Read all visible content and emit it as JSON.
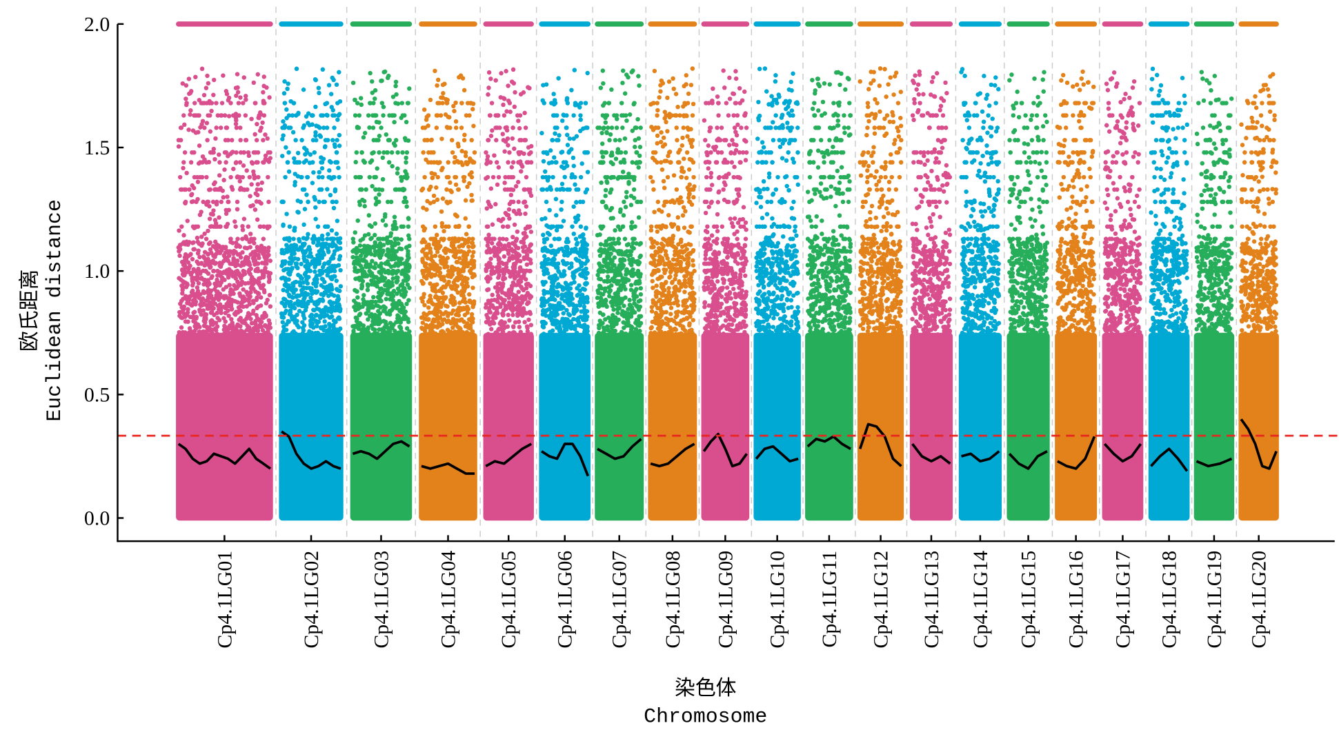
{
  "chart_data": {
    "type": "scatter",
    "title": "",
    "ylabel_cn": "欧氏距离",
    "ylabel": "Euclidean distance",
    "xlabel_cn": "染色体",
    "xlabel": "Chromosome",
    "ylim": [
      -0.1,
      2.0
    ],
    "yticks": [
      "0.0",
      "0.5",
      "1.0",
      "1.5",
      "2.0"
    ],
    "ytick_values": [
      0,
      0.5,
      1.0,
      1.5,
      2.0
    ],
    "threshold": 0.333,
    "threshold_color": "#e8251f",
    "colors": [
      "#d94f8e",
      "#00a9d4",
      "#27ae5a",
      "#e3821a"
    ],
    "chromosomes": [
      {
        "name": "Cp4.1LG01",
        "smooth": [
          0.3,
          0.28,
          0.24,
          0.22,
          0.23,
          0.26,
          0.25,
          0.24,
          0.22,
          0.25,
          0.28,
          0.24,
          0.22,
          0.2
        ]
      },
      {
        "name": "Cp4.1LG02",
        "smooth": [
          0.35,
          0.33,
          0.26,
          0.22,
          0.2,
          0.21,
          0.23,
          0.21,
          0.2
        ]
      },
      {
        "name": "Cp4.1LG03",
        "smooth": [
          0.26,
          0.27,
          0.26,
          0.24,
          0.27,
          0.3,
          0.31,
          0.29
        ]
      },
      {
        "name": "Cp4.1LG04",
        "smooth": [
          0.21,
          0.2,
          0.21,
          0.22,
          0.2,
          0.18,
          0.18
        ]
      },
      {
        "name": "Cp4.1LG05",
        "smooth": [
          0.21,
          0.23,
          0.22,
          0.25,
          0.28,
          0.3
        ]
      },
      {
        "name": "Cp4.1LG06",
        "smooth": [
          0.27,
          0.25,
          0.24,
          0.3,
          0.3,
          0.25,
          0.17
        ]
      },
      {
        "name": "Cp4.1LG07",
        "smooth": [
          0.28,
          0.26,
          0.24,
          0.25,
          0.29,
          0.32
        ]
      },
      {
        "name": "Cp4.1LG08",
        "smooth": [
          0.22,
          0.21,
          0.22,
          0.25,
          0.28,
          0.3
        ]
      },
      {
        "name": "Cp4.1LG09",
        "smooth": [
          0.27,
          0.31,
          0.34,
          0.28,
          0.21,
          0.22,
          0.26
        ]
      },
      {
        "name": "Cp4.1LG10",
        "smooth": [
          0.24,
          0.28,
          0.29,
          0.26,
          0.23,
          0.24
        ]
      },
      {
        "name": "Cp4.1LG11",
        "smooth": [
          0.29,
          0.32,
          0.31,
          0.33,
          0.3,
          0.28
        ]
      },
      {
        "name": "Cp4.1LG12",
        "smooth": [
          0.28,
          0.38,
          0.37,
          0.33,
          0.24,
          0.21
        ]
      },
      {
        "name": "Cp4.1LG13",
        "smooth": [
          0.3,
          0.25,
          0.23,
          0.25,
          0.22
        ]
      },
      {
        "name": "Cp4.1LG14",
        "smooth": [
          0.25,
          0.26,
          0.23,
          0.24,
          0.27
        ]
      },
      {
        "name": "Cp4.1LG15",
        "smooth": [
          0.26,
          0.22,
          0.2,
          0.25,
          0.27
        ]
      },
      {
        "name": "Cp4.1LG16",
        "smooth": [
          0.23,
          0.21,
          0.2,
          0.24,
          0.33
        ]
      },
      {
        "name": "Cp4.1LG17",
        "smooth": [
          0.3,
          0.26,
          0.23,
          0.25,
          0.3
        ]
      },
      {
        "name": "Cp4.1LG18",
        "smooth": [
          0.21,
          0.25,
          0.28,
          0.24,
          0.19
        ]
      },
      {
        "name": "Cp4.1LG19",
        "smooth": [
          0.23,
          0.21,
          0.22,
          0.24
        ]
      },
      {
        "name": "Cp4.1LG20",
        "smooth": [
          0.4,
          0.36,
          0.3,
          0.21,
          0.2,
          0.27
        ]
      }
    ]
  }
}
